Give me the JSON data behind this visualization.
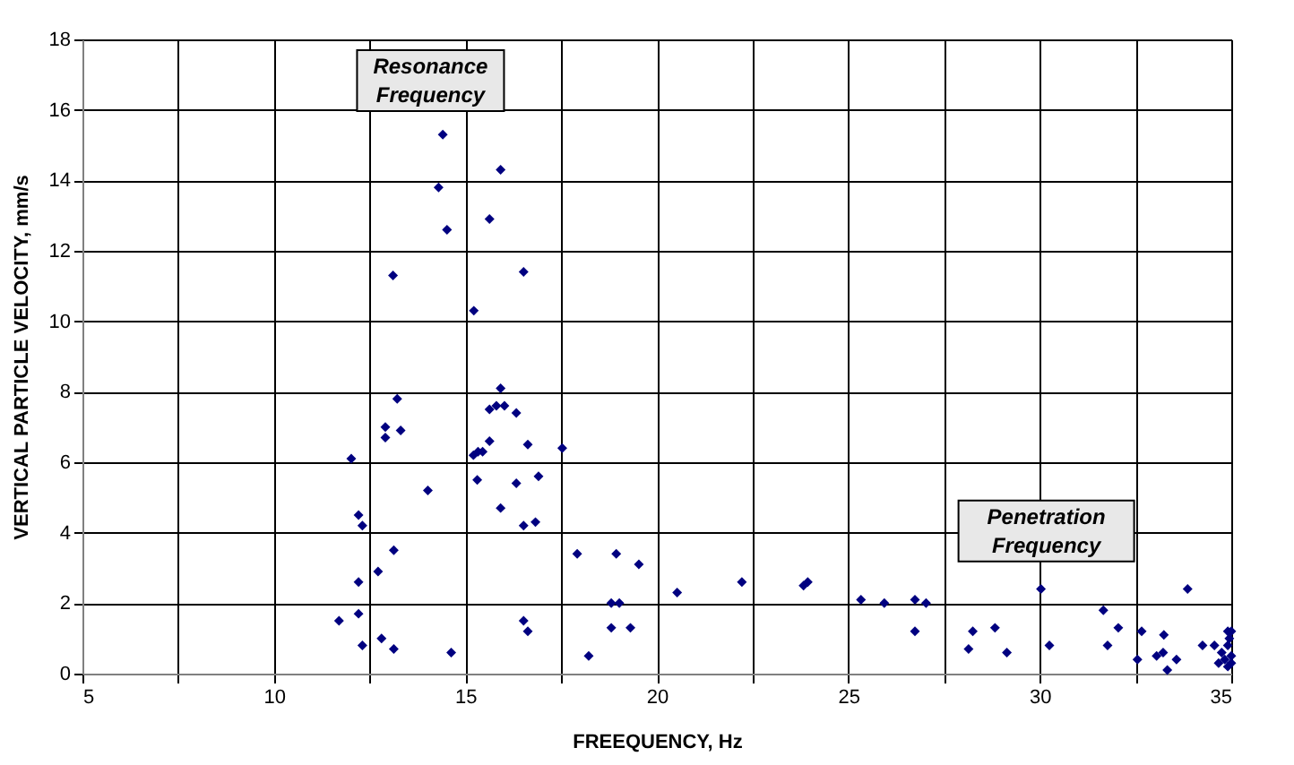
{
  "chart_data": {
    "type": "scatter",
    "xlabel": "FREEQUENCY, Hz",
    "ylabel": "VERTICAL PARTICLE VELOCITY, mm/s",
    "xlim": [
      5,
      35
    ],
    "xticks": [
      5,
      {
        "value": 7.5,
        "label": null
      },
      10,
      {
        "value": 12.5,
        "label": null
      },
      15,
      {
        "value": 17.5,
        "label": null
      },
      20,
      {
        "value": 22.5,
        "label": null
      },
      25,
      {
        "value": 27.5,
        "label": null
      },
      30,
      {
        "value": 32.5,
        "label": null
      },
      35
    ],
    "ylim": [
      0,
      18
    ],
    "yticks": [
      0,
      2,
      4,
      6,
      8,
      10,
      12,
      14,
      16,
      18
    ],
    "grid": true,
    "marker": "diamond",
    "annotations": [
      "Resonance Frequency",
      "Penetration Frequency"
    ],
    "series": [
      {
        "color": "#000080",
        "x": [
          14.41,
          15.92,
          14.3,
          15.63,
          14.52,
          13.11,
          16.52,
          15.22,
          13.22,
          15.92,
          15.63,
          15.81,
          16.02,
          16.33,
          12.91,
          13.31,
          12.91,
          12.02,
          15.63,
          16.63,
          17.53,
          15.21,
          15.33,
          15.45,
          15.31,
          14.02,
          16.33,
          16.91,
          15.92,
          12.21,
          12.31,
          16.52,
          16.83,
          13.13,
          12.72,
          12.21,
          17.92,
          18.94,
          18.81,
          19.02,
          12.21,
          11.7,
          16.52,
          16.63,
          18.81,
          19.31,
          12.31,
          12.81,
          13.13,
          14.63,
          18.22,
          19.53,
          20.53,
          22.22,
          23.83,
          23.94,
          25.33,
          25.94,
          26.74,
          27.03,
          26.74,
          28.25,
          28.14,
          28.83,
          29.14,
          30.03,
          30.25,
          31.66,
          31.77,
          32.05,
          32.66,
          32.55,
          33.24,
          33.05,
          33.22,
          33.57,
          33.33,
          33.86,
          34.25,
          34.56,
          34.91,
          35.0,
          34.75,
          34.91,
          35.0,
          34.67,
          34.91,
          35.0,
          34.83,
          34.95
        ],
        "values": [
          15.3,
          14.3,
          13.8,
          12.9,
          12.6,
          11.3,
          11.4,
          10.3,
          7.8,
          8.1,
          7.5,
          7.6,
          7.6,
          7.4,
          7.0,
          6.9,
          6.7,
          6.1,
          6.6,
          6.5,
          6.4,
          6.2,
          6.3,
          6.3,
          5.5,
          5.2,
          5.4,
          5.6,
          4.7,
          4.5,
          4.2,
          4.2,
          4.3,
          3.5,
          2.9,
          2.6,
          3.4,
          3.4,
          2.0,
          2.0,
          1.7,
          1.5,
          1.5,
          1.2,
          1.3,
          1.3,
          0.8,
          1.0,
          0.7,
          0.6,
          0.5,
          3.1,
          2.3,
          2.6,
          2.5,
          2.6,
          2.1,
          2.0,
          2.1,
          2.0,
          1.2,
          1.2,
          0.7,
          1.3,
          0.6,
          2.4,
          0.8,
          1.8,
          0.8,
          1.3,
          1.2,
          0.4,
          1.1,
          0.5,
          0.6,
          0.4,
          0.1,
          2.4,
          0.8,
          0.8,
          1.2,
          1.2,
          0.6,
          0.8,
          0.5,
          0.3,
          0.2,
          0.3,
          0.4,
          1.0
        ]
      }
    ]
  }
}
